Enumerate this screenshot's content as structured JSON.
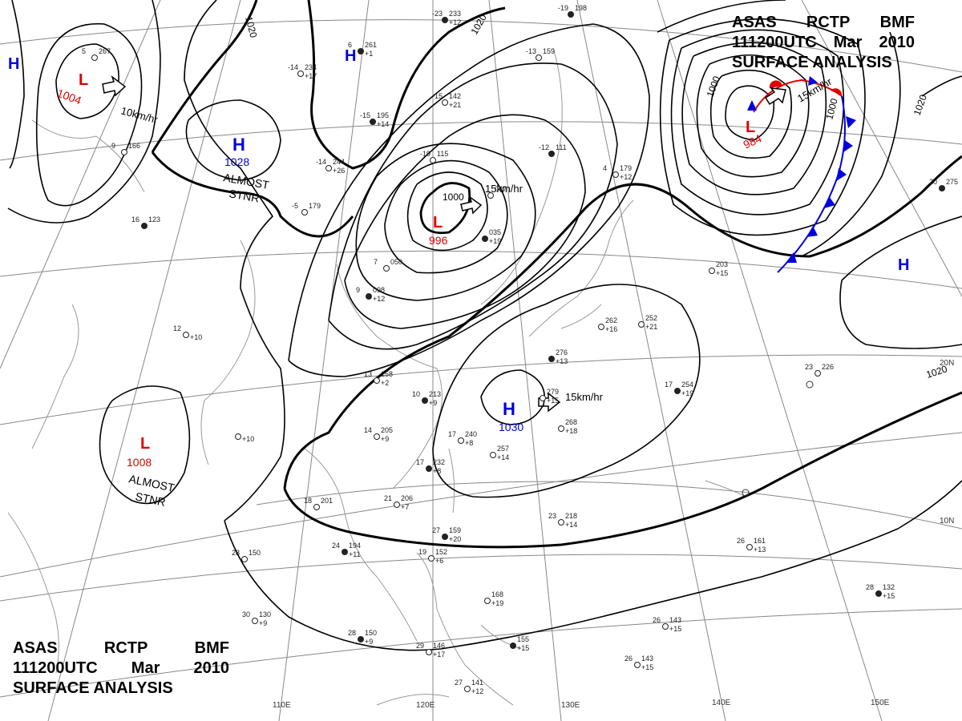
{
  "chart_header": {
    "line1": [
      "ASAS",
      "RCTP",
      "BMF"
    ],
    "line2": [
      "111200UTC",
      "Mar",
      "2010"
    ],
    "line3": "SURFACE ANALYSIS"
  },
  "longitude_labels": [
    "110E",
    "120E",
    "130E",
    "140E",
    "150E"
  ],
  "latitude_labels": [
    "20N",
    "10N"
  ],
  "isobar_labels": [
    "1020",
    "1020",
    "1000",
    "1000",
    "1000",
    "1020",
    "1020"
  ],
  "pressure_systems": [
    {
      "id": "low-ne-mongolia",
      "type": "L",
      "value": "1004",
      "motion": "10km/hr",
      "note": ""
    },
    {
      "id": "high-mongolia",
      "type": "H",
      "value": "1028",
      "motion": "",
      "note": "ALMOST STNR"
    },
    {
      "id": "low-manchuria",
      "type": "L",
      "value": "996",
      "motion": "15km/hr",
      "note": ""
    },
    {
      "id": "low-kamchatka",
      "type": "L",
      "value": "984",
      "motion": "15km/hr",
      "note": ""
    },
    {
      "id": "high-east-china-sea",
      "type": "H",
      "value": "1030",
      "motion": "15km/hr",
      "note": ""
    },
    {
      "id": "low-bay-of-bengal",
      "type": "L",
      "value": "1008",
      "motion": "",
      "note": "ALMOST STNR"
    },
    {
      "id": "high-far-west",
      "type": "H",
      "value": "",
      "motion": "",
      "note": ""
    },
    {
      "id": "high-north-china",
      "type": "H",
      "value": "",
      "motion": "",
      "note": ""
    },
    {
      "id": "high-pacific",
      "type": "H",
      "value": "",
      "motion": "",
      "note": ""
    }
  ],
  "station_plots": [
    {
      "temp": "-23",
      "pres": "233",
      "tend": "+12"
    },
    {
      "temp": "-14",
      "pres": "234",
      "tend": "+17"
    },
    {
      "temp": "-15",
      "pres": "142",
      "tend": "+21"
    },
    {
      "temp": "-15",
      "pres": "195",
      "tend": "+14"
    },
    {
      "temp": "-14",
      "pres": "244",
      "tend": "+26"
    },
    {
      "temp": "-19",
      "pres": "115",
      "tend": ""
    },
    {
      "temp": "-12",
      "pres": "111",
      "tend": ""
    },
    {
      "temp": "4",
      "pres": "179",
      "tend": "+12"
    },
    {
      "temp": "-5",
      "pres": "179",
      "tend": ""
    },
    {
      "temp": "9",
      "pres": "098",
      "tend": "+12"
    },
    {
      "temp": "7",
      "pres": "050",
      "tend": ""
    },
    {
      "temp": "13",
      "pres": "158",
      "tend": "+2"
    },
    {
      "temp": "10",
      "pres": "213",
      "tend": "+9"
    },
    {
      "temp": "14",
      "pres": "205",
      "tend": "+9"
    },
    {
      "temp": "17",
      "pres": "240",
      "tend": "+8"
    },
    {
      "temp": "17",
      "pres": "232",
      "tend": "+8"
    },
    {
      "temp": "",
      "pres": "257",
      "tend": "+14"
    },
    {
      "temp": "",
      "pres": "268",
      "tend": "+18"
    },
    {
      "temp": "",
      "pres": "276",
      "tend": "+13"
    },
    {
      "temp": "",
      "pres": "262",
      "tend": "+16"
    },
    {
      "temp": "",
      "pres": "252",
      "tend": "+21"
    },
    {
      "temp": "17",
      "pres": "254",
      "tend": "+19"
    },
    {
      "temp": "23",
      "pres": "226",
      "tend": ""
    },
    {
      "temp": "",
      "pres": "203",
      "tend": "+15"
    },
    {
      "temp": "20",
      "pres": "275",
      "tend": ""
    },
    {
      "temp": "21",
      "pres": "206",
      "tend": "+7"
    },
    {
      "temp": "18",
      "pres": "201",
      "tend": ""
    },
    {
      "temp": "24",
      "pres": "194",
      "tend": "+11"
    },
    {
      "temp": "28",
      "pres": "150",
      "tend": ""
    },
    {
      "temp": "30",
      "pres": "130",
      "tend": "+9"
    },
    {
      "temp": "28",
      "pres": "150",
      "tend": "+9"
    },
    {
      "temp": "29",
      "pres": "146",
      "tend": "+17"
    },
    {
      "temp": "27",
      "pres": "141",
      "tend": "+12"
    },
    {
      "temp": "27",
      "pres": "159",
      "tend": "+20"
    },
    {
      "temp": "19",
      "pres": "152",
      "tend": "+6"
    },
    {
      "temp": "",
      "pres": "168",
      "tend": "+19"
    },
    {
      "temp": "",
      "pres": "155",
      "tend": "+15"
    },
    {
      "temp": "23",
      "pres": "218",
      "tend": "+14"
    },
    {
      "temp": "26",
      "pres": "161",
      "tend": "+13"
    },
    {
      "temp": "28",
      "pres": "132",
      "tend": "+15"
    },
    {
      "temp": "26",
      "pres": "143",
      "tend": "+15"
    },
    {
      "temp": "26",
      "pres": "143",
      "tend": "+15"
    },
    {
      "temp": "16",
      "pres": "123",
      "tend": ""
    },
    {
      "temp": "9",
      "pres": "166",
      "tend": ""
    },
    {
      "temp": "5",
      "pres": "267",
      "tend": ""
    },
    {
      "temp": "6",
      "pres": "261",
      "tend": "+1"
    },
    {
      "temp": "12",
      "pres": "",
      "tend": "+10"
    },
    {
      "temp": "",
      "pres": "",
      "tend": "+10"
    },
    {
      "temp": "",
      "pres": "035",
      "tend": "+19"
    },
    {
      "temp": "",
      "pres": "047",
      "tend": ""
    },
    {
      "temp": "-13",
      "pres": "159",
      "tend": ""
    },
    {
      "temp": "-19",
      "pres": "198",
      "tend": ""
    },
    {
      "temp": "",
      "pres": "279",
      "tend": "+15"
    }
  ],
  "colors": {
    "isobar": "#000000",
    "grid": "#777777",
    "coast": "#888888",
    "low": "#e00000",
    "high": "#0000dd",
    "warm_front": "#e00000",
    "cold_front": "#0000dd"
  }
}
